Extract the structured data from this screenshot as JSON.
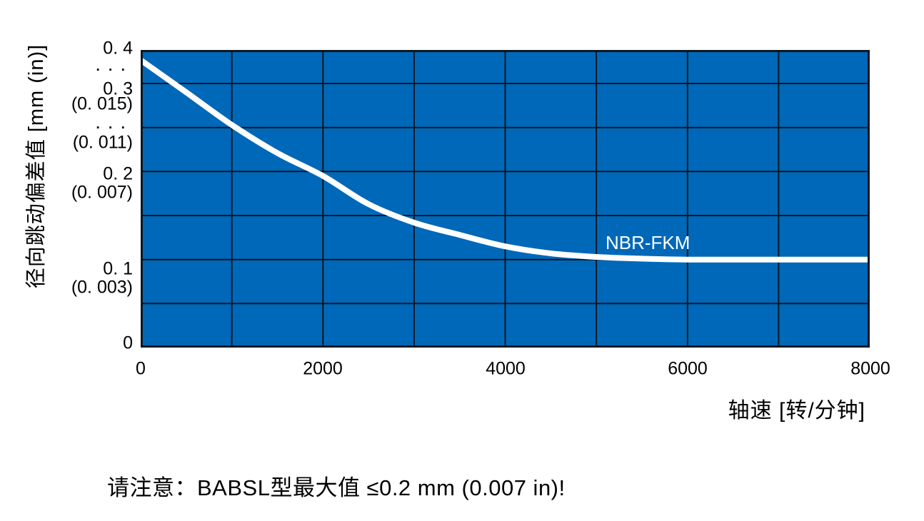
{
  "colors": {
    "plot_background_blue": "#0068b8",
    "grid_line": "#0d1722",
    "curve_white": "#ffffff",
    "text_black": "#000000"
  },
  "chart_data": {
    "type": "line",
    "title": "",
    "xlabel": "轴速 [转/分钟]",
    "ylabel": "径向跳动偏差值 [mm (in)]",
    "x_tick_labels": [
      "0",
      "2000",
      "4000",
      "6000",
      "8000"
    ],
    "y_tick_labels_mm": [
      "0. 4",
      "0. 3",
      "0. 2",
      "0. 1",
      "0"
    ],
    "y_tick_labels_inch": [
      "(0. 015)",
      "(0. 011)",
      "(0. 007)",
      "(0. 003)"
    ],
    "broken_axis_marker": "· · ·",
    "xlim": [
      0,
      8000
    ],
    "ylim_mm": [
      0,
      0.4
    ],
    "axis_break_mm": [
      0.3,
      0.4
    ],
    "grid": true,
    "legend_position": "inline-right",
    "x_gridlines_rpm": [
      1000,
      2000,
      3000,
      4000,
      5000,
      6000,
      7000
    ],
    "y_gridlines_mm": [
      0.05,
      0.1,
      0.15,
      0.2,
      0.25,
      0.3
    ],
    "series": [
      {
        "name": "NBR-FKM",
        "points": [
          [
            0,
            0.37
          ],
          [
            500,
            0.29
          ],
          [
            1000,
            0.253
          ],
          [
            1500,
            0.221
          ],
          [
            2000,
            0.195
          ],
          [
            2500,
            0.163
          ],
          [
            3000,
            0.142
          ],
          [
            3500,
            0.128
          ],
          [
            4000,
            0.115
          ],
          [
            4500,
            0.107
          ],
          [
            5000,
            0.103
          ],
          [
            5500,
            0.101
          ],
          [
            6000,
            0.1
          ],
          [
            7000,
            0.1
          ],
          [
            8000,
            0.1
          ]
        ]
      }
    ],
    "note": "请注意：BABSL型最大值 ≤0.2 mm (0.007 in)!"
  },
  "y_axis_display": {
    "labels": [
      {
        "text": "0. 4"
      },
      {
        "text": "· · ·"
      },
      {
        "text": "0. 3"
      },
      {
        "text": "(0. 015)"
      },
      {
        "text": "· · ·"
      },
      {
        "text": "(0. 011)"
      },
      {
        "text": "0. 2"
      },
      {
        "text": "(0. 007)"
      },
      {
        "text": "0. 1"
      },
      {
        "text": "(0. 003)"
      },
      {
        "text": "0"
      }
    ]
  },
  "x_axis_display": {
    "labels": [
      {
        "text": "0"
      },
      {
        "text": "2000"
      },
      {
        "text": "4000"
      },
      {
        "text": "6000"
      },
      {
        "text": "8000"
      }
    ]
  }
}
